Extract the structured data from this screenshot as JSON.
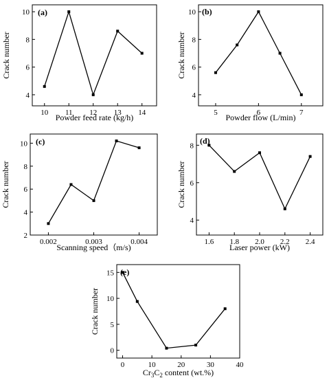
{
  "chart_data": [
    {
      "type": "line",
      "panel_label": "(a)",
      "xlabel": "Powder feed rate (kg/h)",
      "ylabel": "Crack number",
      "x": [
        10,
        11,
        12,
        13,
        14
      ],
      "y": [
        4.6,
        10.0,
        4.0,
        8.6,
        7.0
      ],
      "xlim": [
        9.5,
        14.6
      ],
      "ylim": [
        3.2,
        10.5
      ],
      "xticks": [
        10,
        11,
        12,
        13,
        14
      ],
      "yticks": [
        4,
        6,
        8,
        10
      ],
      "xtick_labels": [
        "10",
        "11",
        "12",
        "13",
        "14"
      ],
      "ytick_labels": [
        "4",
        "6",
        "8",
        "10"
      ]
    },
    {
      "type": "line",
      "panel_label": "(b)",
      "xlabel": "Powder flow (L/min)",
      "ylabel": "Crack number",
      "x": [
        5.0,
        5.5,
        6.0,
        6.5,
        7.0
      ],
      "y": [
        5.6,
        7.6,
        10.0,
        7.0,
        4.0
      ],
      "xlim": [
        4.6,
        7.5
      ],
      "ylim": [
        3.2,
        10.5
      ],
      "xticks": [
        5,
        6,
        7
      ],
      "yticks": [
        4,
        6,
        8,
        10
      ],
      "xtick_labels": [
        "5",
        "6",
        "7"
      ],
      "ytick_labels": [
        "4",
        "6",
        "8",
        "10"
      ]
    },
    {
      "type": "line",
      "panel_label": "(c)",
      "xlabel": "Scanning speed（m/s)",
      "ylabel": "Crack number",
      "x": [
        0.002,
        0.0025,
        0.003,
        0.0035,
        0.004
      ],
      "y": [
        3.0,
        6.4,
        5.0,
        10.2,
        9.6
      ],
      "xlim": [
        0.0016,
        0.0044
      ],
      "ylim": [
        2.0,
        10.8
      ],
      "xticks": [
        0.002,
        0.003,
        0.004
      ],
      "yticks": [
        2,
        4,
        6,
        8,
        10
      ],
      "xtick_labels": [
        "0.002",
        "0.003",
        "0.004"
      ],
      "ytick_labels": [
        "2",
        "4",
        "6",
        "8",
        "10"
      ]
    },
    {
      "type": "line",
      "panel_label": "(d)",
      "xlabel": "Laser power (kW)",
      "ylabel": "Crack number",
      "x": [
        1.6,
        1.8,
        2.0,
        2.2,
        2.4
      ],
      "y": [
        8.0,
        6.6,
        7.6,
        4.6,
        7.4
      ],
      "xlim": [
        1.5,
        2.5
      ],
      "ylim": [
        3.2,
        8.6
      ],
      "xticks": [
        1.6,
        1.8,
        2.0,
        2.2,
        2.4
      ],
      "yticks": [
        4,
        6,
        8
      ],
      "xtick_labels": [
        "1.6",
        "1.8",
        "2.0",
        "2.2",
        "2.4"
      ],
      "ytick_labels": [
        "4",
        "6",
        "8"
      ]
    },
    {
      "type": "line",
      "panel_label": "(e)",
      "xlabel_main": "C",
      "xlabel_prefix": "Cr",
      "xlabel_sub1": "3",
      "xlabel_sub2": "2",
      "xlabel_rest": " content (wt.%)",
      "ylabel": "Crack number",
      "x": [
        0,
        5,
        15,
        25,
        35
      ],
      "y": [
        15.0,
        9.4,
        0.4,
        1.0,
        8.0
      ],
      "xlim": [
        -2,
        40
      ],
      "ylim": [
        -1.5,
        16.5
      ],
      "xticks": [
        0,
        10,
        20,
        30,
        40
      ],
      "yticks": [
        0,
        5,
        10,
        15
      ],
      "xtick_labels": [
        "0",
        "10",
        "20",
        "30",
        "40"
      ],
      "ytick_labels": [
        "0",
        "5",
        "10",
        "15"
      ]
    }
  ]
}
